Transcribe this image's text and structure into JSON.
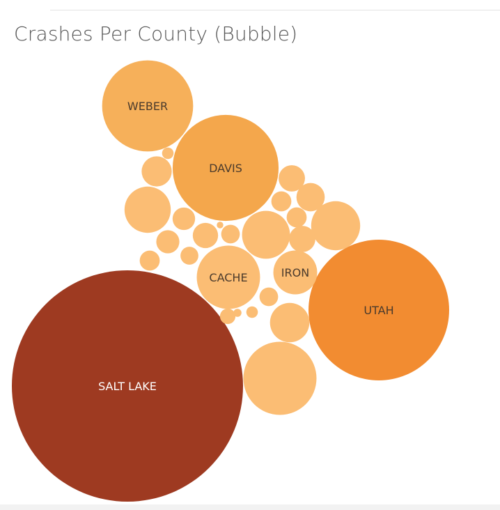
{
  "colors": {
    "background": "#ffffff",
    "title_text": "#555555",
    "dark_label": "#4a3a2c",
    "light_label": "#ffffff"
  },
  "chart_data": {
    "type": "bubble",
    "title": "Crashes Per County (Bubble)",
    "color_encoding": "size (sequential orange; largest = dark red-brown)",
    "counties": [
      {
        "name": "SALT LAKE",
        "relative_size": 1.0,
        "color": "#9e3a21",
        "label_color": "#ffffff"
      },
      {
        "name": "UTAH",
        "relative_size": 0.37,
        "color": "#f28c31",
        "label_color": "#4a3a2c"
      },
      {
        "name": "DAVIS",
        "relative_size": 0.21,
        "color": "#f4a74c",
        "label_color": "#4a3a2c"
      },
      {
        "name": "WEBER",
        "relative_size": 0.155,
        "color": "#f6b05a",
        "label_color": "#4a3a2c"
      },
      {
        "name": "CACHE",
        "relative_size": 0.075,
        "color": "#fbbd74",
        "label_color": "#4a3a2c"
      },
      {
        "name": "IRON",
        "relative_size": 0.036,
        "color": "#fbbd74",
        "label_color": "#4a3a2c"
      },
      {
        "name": "",
        "relative_size": 0.1,
        "color": "#fbbd74"
      },
      {
        "name": "",
        "relative_size": 0.045,
        "color": "#fbbd74"
      },
      {
        "name": "",
        "relative_size": 0.04,
        "color": "#fbbd74"
      },
      {
        "name": "",
        "relative_size": 0.043,
        "color": "#fbbd74"
      },
      {
        "name": "",
        "relative_size": 0.029,
        "color": "#fbbd74"
      },
      {
        "name": "",
        "relative_size": 0.017,
        "color": "#fbbd74"
      },
      {
        "name": "",
        "relative_size": 0.0025,
        "color": "#fbbd74"
      },
      {
        "name": "",
        "relative_size": 0.0095,
        "color": "#fbbd74"
      },
      {
        "name": "",
        "relative_size": 0.012,
        "color": "#fbbd74"
      },
      {
        "name": "",
        "relative_size": 0.01,
        "color": "#fbbd74"
      },
      {
        "name": "",
        "relative_size": 0.013,
        "color": "#fbbd74"
      },
      {
        "name": "",
        "relative_size": 0.015,
        "color": "#fbbd74"
      },
      {
        "name": "",
        "relative_size": 0.013,
        "color": "#fbbd74"
      },
      {
        "name": "",
        "relative_size": 0.0075,
        "color": "#fbbd74"
      },
      {
        "name": "",
        "relative_size": 0.0075,
        "color": "#fbbd74"
      },
      {
        "name": "",
        "relative_size": 0.006,
        "color": "#fbbd74"
      },
      {
        "name": "",
        "relative_size": 0.0008,
        "color": "#fbbd74"
      },
      {
        "name": "",
        "relative_size": 0.0065,
        "color": "#fbbd74"
      },
      {
        "name": "",
        "relative_size": 0.0075,
        "color": "#fbbd74"
      },
      {
        "name": "",
        "relative_size": 0.0065,
        "color": "#fbbd74"
      },
      {
        "name": "",
        "relative_size": 0.0025,
        "color": "#fbbd74"
      },
      {
        "name": "",
        "relative_size": 0.0012,
        "color": "#fbbd74"
      },
      {
        "name": "",
        "relative_size": 0.0045,
        "color": "#fbbd74"
      }
    ]
  }
}
